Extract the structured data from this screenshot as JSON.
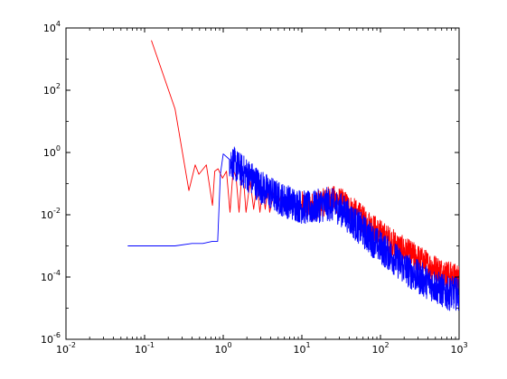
{
  "chart_data": {
    "type": "line",
    "title": "",
    "xlabel": "",
    "ylabel": "",
    "x_scale": "log",
    "y_scale": "log",
    "xlim": [
      0.01,
      1000
    ],
    "ylim": [
      1e-06,
      10000
    ],
    "x_ticks": [
      {
        "value": 0.01,
        "base": "10",
        "exp": "-2"
      },
      {
        "value": 0.1,
        "base": "10",
        "exp": "-1"
      },
      {
        "value": 1,
        "base": "10",
        "exp": "0"
      },
      {
        "value": 10,
        "base": "10",
        "exp": "1"
      },
      {
        "value": 100,
        "base": "10",
        "exp": "2"
      },
      {
        "value": 1000,
        "base": "10",
        "exp": "3"
      }
    ],
    "y_ticks": [
      {
        "value": 1e-06,
        "base": "10",
        "exp": "-6"
      },
      {
        "value": 0.0001,
        "base": "10",
        "exp": "-4"
      },
      {
        "value": 0.01,
        "base": "10",
        "exp": "-2"
      },
      {
        "value": 1,
        "base": "10",
        "exp": "0"
      },
      {
        "value": 100,
        "base": "10",
        "exp": "2"
      },
      {
        "value": 10000,
        "base": "10",
        "exp": "4"
      }
    ],
    "grid": false,
    "legend": "none",
    "series": [
      {
        "color": "#ff0000",
        "noise_from_x": 10,
        "x": [
          0.122,
          0.244,
          0.366,
          0.44,
          0.49,
          0.61,
          0.73,
          0.78,
          0.86,
          0.98,
          1.1,
          1.22,
          1.34,
          1.46,
          1.59,
          1.71,
          1.83,
          1.95,
          2.2,
          2.44,
          2.69,
          2.93,
          3.17,
          3.42,
          3.66,
          3.9,
          4.4,
          4.9,
          5.4,
          5.9,
          6.4,
          7.0,
          7.8,
          8.5,
          9.3,
          10,
          13,
          17,
          22,
          28,
          35,
          45,
          60,
          80,
          100,
          150,
          200,
          300,
          400,
          600,
          800,
          1000
        ],
        "y": [
          4000,
          25,
          0.06,
          0.4,
          0.2,
          0.4,
          0.02,
          0.25,
          0.3,
          0.15,
          0.25,
          0.012,
          0.3,
          0.15,
          0.012,
          0.15,
          0.1,
          0.012,
          0.12,
          0.015,
          0.1,
          0.012,
          0.08,
          0.015,
          0.06,
          0.012,
          0.05,
          0.015,
          0.04,
          0.015,
          0.035,
          0.015,
          0.03,
          0.018,
          0.025,
          0.02,
          0.018,
          0.022,
          0.03,
          0.03,
          0.022,
          0.013,
          0.007,
          0.004,
          0.0025,
          0.0012,
          0.0007,
          0.0004,
          0.00025,
          0.00015,
          0.00011,
          9e-05
        ]
      },
      {
        "color": "#0000ff",
        "noise_from_x": 1.2,
        "x": [
          0.061,
          0.122,
          0.244,
          0.4,
          0.55,
          0.73,
          0.79,
          0.85,
          0.92,
          1.0,
          1.2,
          1.6,
          2.0,
          2.5,
          3,
          4,
          5,
          7,
          10,
          13,
          17,
          22,
          28,
          35,
          45,
          60,
          80,
          100,
          150,
          200,
          300,
          500,
          700,
          1000
        ],
        "y": [
          0.001,
          0.001,
          0.001,
          0.0012,
          0.0012,
          0.0014,
          0.0014,
          0.0014,
          0.2,
          0.9,
          0.6,
          0.3,
          0.2,
          0.12,
          0.08,
          0.05,
          0.035,
          0.025,
          0.018,
          0.016,
          0.02,
          0.022,
          0.018,
          0.012,
          0.006,
          0.003,
          0.0015,
          0.0009,
          0.0004,
          0.0002,
          0.0001,
          5e-05,
          3e-05,
          3e-05
        ]
      }
    ]
  }
}
